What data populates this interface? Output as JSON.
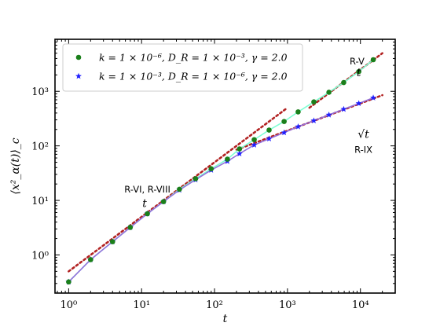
{
  "chart_data": {
    "type": "line",
    "xscale": "log",
    "yscale": "log",
    "xlim": [
      0.65,
      30000
    ],
    "ylim": [
      0.2,
      9000
    ],
    "xlabel": "t",
    "ylabel": "⟨x²_α(t)⟩_c",
    "x_ticks": [
      {
        "value": 1,
        "label": "10⁰"
      },
      {
        "value": 10,
        "label": "10¹"
      },
      {
        "value": 100,
        "label": "10²"
      },
      {
        "value": 1000,
        "label": "10³"
      },
      {
        "value": 10000,
        "label": "10⁴"
      }
    ],
    "y_ticks": [
      {
        "value": 1,
        "label": "10⁰"
      },
      {
        "value": 10,
        "label": "10¹"
      },
      {
        "value": 100,
        "label": "10²"
      },
      {
        "value": 1000,
        "label": "10³"
      }
    ],
    "legend_position": "top-left",
    "series": [
      {
        "name": "k = 1 × 10⁻⁶, D_R = 1 × 10⁻³, γ = 2.0",
        "marker": "circle",
        "marker_color": "#1a7f1a",
        "line_color": "#7fffd4",
        "x": [
          1,
          2,
          4,
          7,
          12,
          20,
          33,
          55,
          90,
          150,
          220,
          350,
          560,
          900,
          1400,
          2300,
          3700,
          5900,
          9500,
          15000
        ],
        "y": [
          0.32,
          0.82,
          1.75,
          3.2,
          5.7,
          9.5,
          16,
          25,
          38,
          57,
          88,
          130,
          195,
          280,
          420,
          640,
          960,
          1450,
          2300,
          3800
        ]
      },
      {
        "name": "k = 1 × 10⁻³, D_R = 1 × 10⁻⁶, γ = 2.0",
        "marker": "star",
        "marker_color": "#1f1fff",
        "line_color": "#9370db",
        "x": [
          1,
          2,
          4,
          7,
          12,
          20,
          33,
          55,
          90,
          150,
          220,
          350,
          560,
          900,
          1400,
          2300,
          3700,
          5900,
          9500,
          15000
        ],
        "y": [
          0.32,
          0.82,
          1.75,
          3.2,
          5.7,
          9.5,
          15.5,
          24,
          36,
          52,
          72,
          104,
          135,
          175,
          225,
          290,
          370,
          470,
          600,
          760
        ]
      }
    ],
    "reference_lines": [
      {
        "label": "t",
        "color": "#b22222",
        "x": [
          1,
          1000
        ],
        "y": [
          0.5,
          500
        ]
      },
      {
        "label": "t",
        "color": "#b22222",
        "x": [
          2000,
          20000
        ],
        "y": [
          500,
          5000
        ]
      },
      {
        "label": "√t",
        "color": "#b22222",
        "x": [
          200,
          20000
        ],
        "y": [
          85,
          850
        ]
      }
    ],
    "annotations": [
      {
        "text": "R-VI, R-VIII",
        "style": "sans",
        "at": [
          12,
          14
        ]
      },
      {
        "text": "t",
        "style": "italic",
        "at": [
          11,
          7.5
        ]
      },
      {
        "text": "R-V",
        "style": "sans",
        "at": [
          9000,
          3100
        ]
      },
      {
        "text": "t",
        "style": "italic",
        "at": [
          9500,
          1900
        ]
      },
      {
        "text": "√t",
        "style": "italic",
        "at": [
          11000,
          140
        ]
      },
      {
        "text": "R-IX",
        "style": "sans",
        "at": [
          11000,
          75
        ]
      }
    ]
  }
}
